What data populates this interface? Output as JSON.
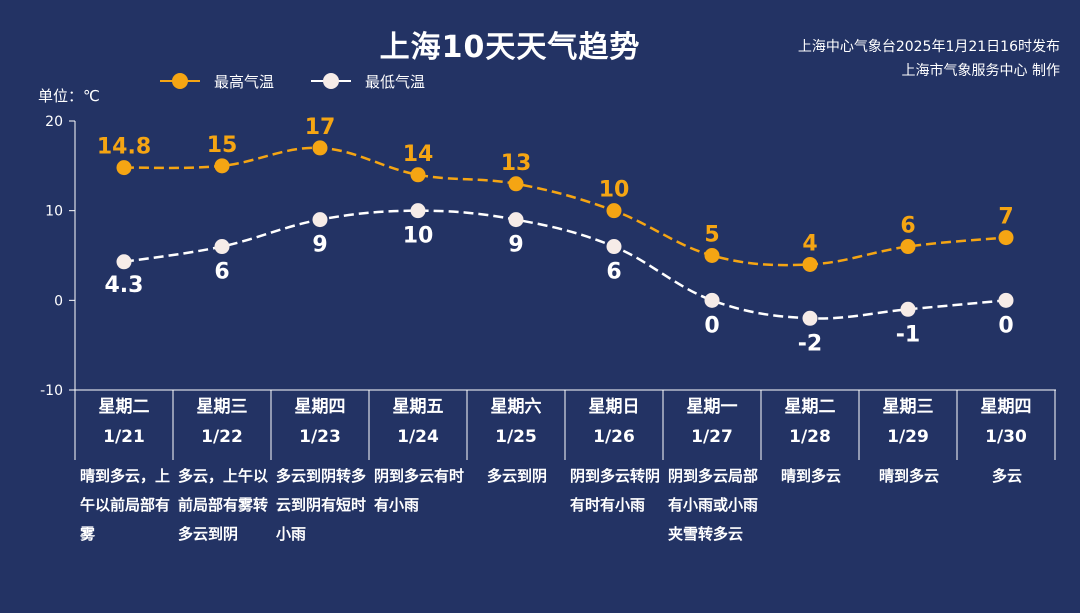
{
  "title": "上海10天天气趋势",
  "issuer": {
    "line1": "上海中心气象台2025年1月21日16时发布",
    "line2": "上海市气象服务中心 制作"
  },
  "unit": "单位：℃",
  "legend": {
    "high": "最高气温",
    "low": "最低气温"
  },
  "colors": {
    "background": "#233364",
    "high": "#f5a513",
    "low": "#ffffff",
    "low_dot": "#f6ece8"
  },
  "chart_data": {
    "type": "line",
    "categories": [
      "1/21",
      "1/22",
      "1/23",
      "1/24",
      "1/25",
      "1/26",
      "1/27",
      "1/28",
      "1/29",
      "1/30"
    ],
    "series": [
      {
        "name": "最高气温",
        "values": [
          14.8,
          15,
          17,
          14,
          13,
          10,
          5,
          4,
          6,
          7
        ],
        "labels": [
          "14.8",
          "15",
          "17",
          "14",
          "13",
          "10",
          "5",
          "4",
          "6",
          "7"
        ]
      },
      {
        "name": "最低气温",
        "values": [
          4.3,
          6,
          9,
          10,
          9,
          6,
          0,
          -2,
          -1,
          0
        ],
        "labels": [
          "4.3",
          "6",
          "9",
          "10",
          "9",
          "6",
          "0",
          "-2",
          "-1",
          "0"
        ]
      }
    ],
    "ylim": [
      -10,
      20
    ],
    "yticks": [
      "20",
      "10",
      "0",
      "-10"
    ],
    "line_style": "dashed"
  },
  "days": [
    {
      "weekday": "星期二",
      "date": "1/21",
      "desc": "晴到多云，上午以前局部有雾"
    },
    {
      "weekday": "星期三",
      "date": "1/22",
      "desc": "多云，上午以前局部有雾转多云到阴"
    },
    {
      "weekday": "星期四",
      "date": "1/23",
      "desc": "多云到阴转多云到阴有短时小雨"
    },
    {
      "weekday": "星期五",
      "date": "1/24",
      "desc": "阴到多云有时有小雨"
    },
    {
      "weekday": "星期六",
      "date": "1/25",
      "desc": "多云到阴"
    },
    {
      "weekday": "星期日",
      "date": "1/26",
      "desc": "阴到多云转阴有时有小雨"
    },
    {
      "weekday": "星期一",
      "date": "1/27",
      "desc": "阴到多云局部有小雨或小雨夹雪转多云"
    },
    {
      "weekday": "星期二",
      "date": "1/28",
      "desc": "晴到多云"
    },
    {
      "weekday": "星期三",
      "date": "1/29",
      "desc": "晴到多云"
    },
    {
      "weekday": "星期四",
      "date": "1/30",
      "desc": "多云"
    }
  ]
}
